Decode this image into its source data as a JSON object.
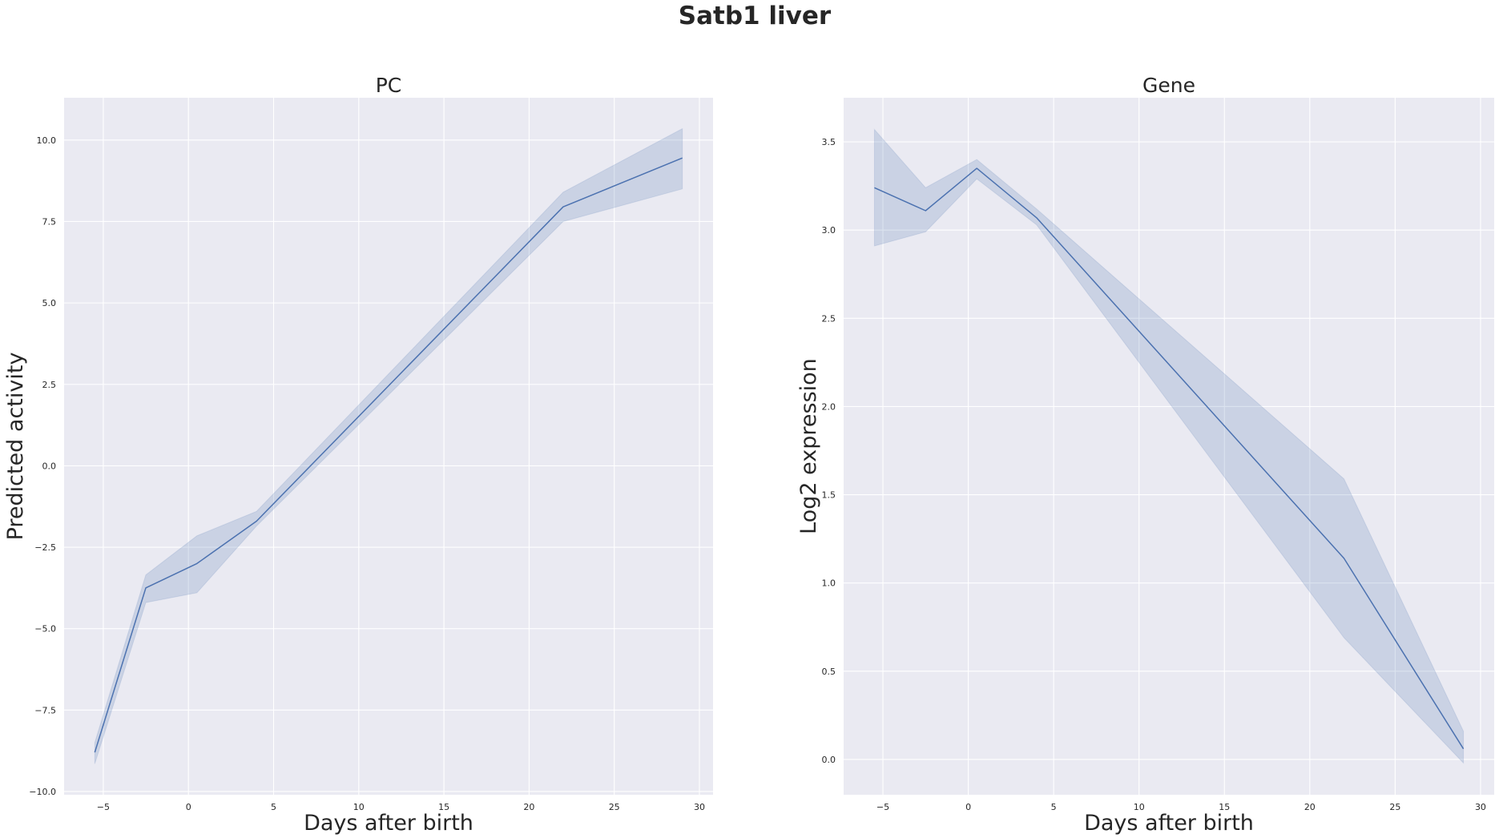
{
  "figure": {
    "title": "Satb1 liver"
  },
  "colors": {
    "line": "#4c72b0",
    "band": "#4c72b0",
    "plot_background": "#eaeaf2",
    "grid": "#ffffff"
  },
  "chart_data": [
    {
      "type": "line",
      "title": "PC",
      "xlabel": "Days after birth",
      "ylabel": "Predicted activity",
      "xlim": [
        -7.3,
        30.8
      ],
      "ylim": [
        -10.1,
        11.3
      ],
      "xticks": [
        -5,
        0,
        5,
        10,
        15,
        20,
        25,
        30
      ],
      "xtick_labels": [
        "−5",
        "0",
        "5",
        "10",
        "15",
        "20",
        "25",
        "30"
      ],
      "yticks": [
        -10.0,
        -7.5,
        -5.0,
        -2.5,
        0.0,
        2.5,
        5.0,
        7.5,
        10.0
      ],
      "ytick_labels": [
        "−10.0",
        "−7.5",
        "−5.0",
        "−2.5",
        "0.0",
        "2.5",
        "5.0",
        "7.5",
        "10.0"
      ],
      "grid": true,
      "series": [
        {
          "x": [
            -5.5,
            -2.5,
            0.5,
            4,
            22,
            29
          ],
          "y": [
            -8.8,
            -3.75,
            -3.0,
            -1.7,
            7.95,
            9.45
          ],
          "ci_lower": [
            -9.15,
            -4.2,
            -3.9,
            -1.85,
            7.5,
            8.5
          ],
          "ci_upper": [
            -8.5,
            -3.35,
            -2.15,
            -1.4,
            8.4,
            10.35
          ]
        }
      ]
    },
    {
      "type": "line",
      "title": "Gene",
      "xlabel": "Days after birth",
      "ylabel": "Log2 expression",
      "xlim": [
        -7.3,
        30.8
      ],
      "ylim": [
        -0.2,
        3.75
      ],
      "xticks": [
        -5,
        0,
        5,
        10,
        15,
        20,
        25,
        30
      ],
      "xtick_labels": [
        "−5",
        "0",
        "5",
        "10",
        "15",
        "20",
        "25",
        "30"
      ],
      "yticks": [
        0.0,
        0.5,
        1.0,
        1.5,
        2.0,
        2.5,
        3.0,
        3.5
      ],
      "ytick_labels": [
        "0.0",
        "0.5",
        "1.0",
        "1.5",
        "2.0",
        "2.5",
        "3.0",
        "3.5"
      ],
      "grid": true,
      "series": [
        {
          "x": [
            -5.5,
            -2.5,
            0.5,
            4,
            22,
            29
          ],
          "y": [
            3.24,
            3.11,
            3.35,
            3.07,
            1.14,
            0.06
          ],
          "ci_lower": [
            2.91,
            2.99,
            3.29,
            3.03,
            0.69,
            -0.02
          ],
          "ci_upper": [
            3.57,
            3.24,
            3.4,
            3.12,
            1.59,
            0.16
          ]
        }
      ]
    }
  ]
}
